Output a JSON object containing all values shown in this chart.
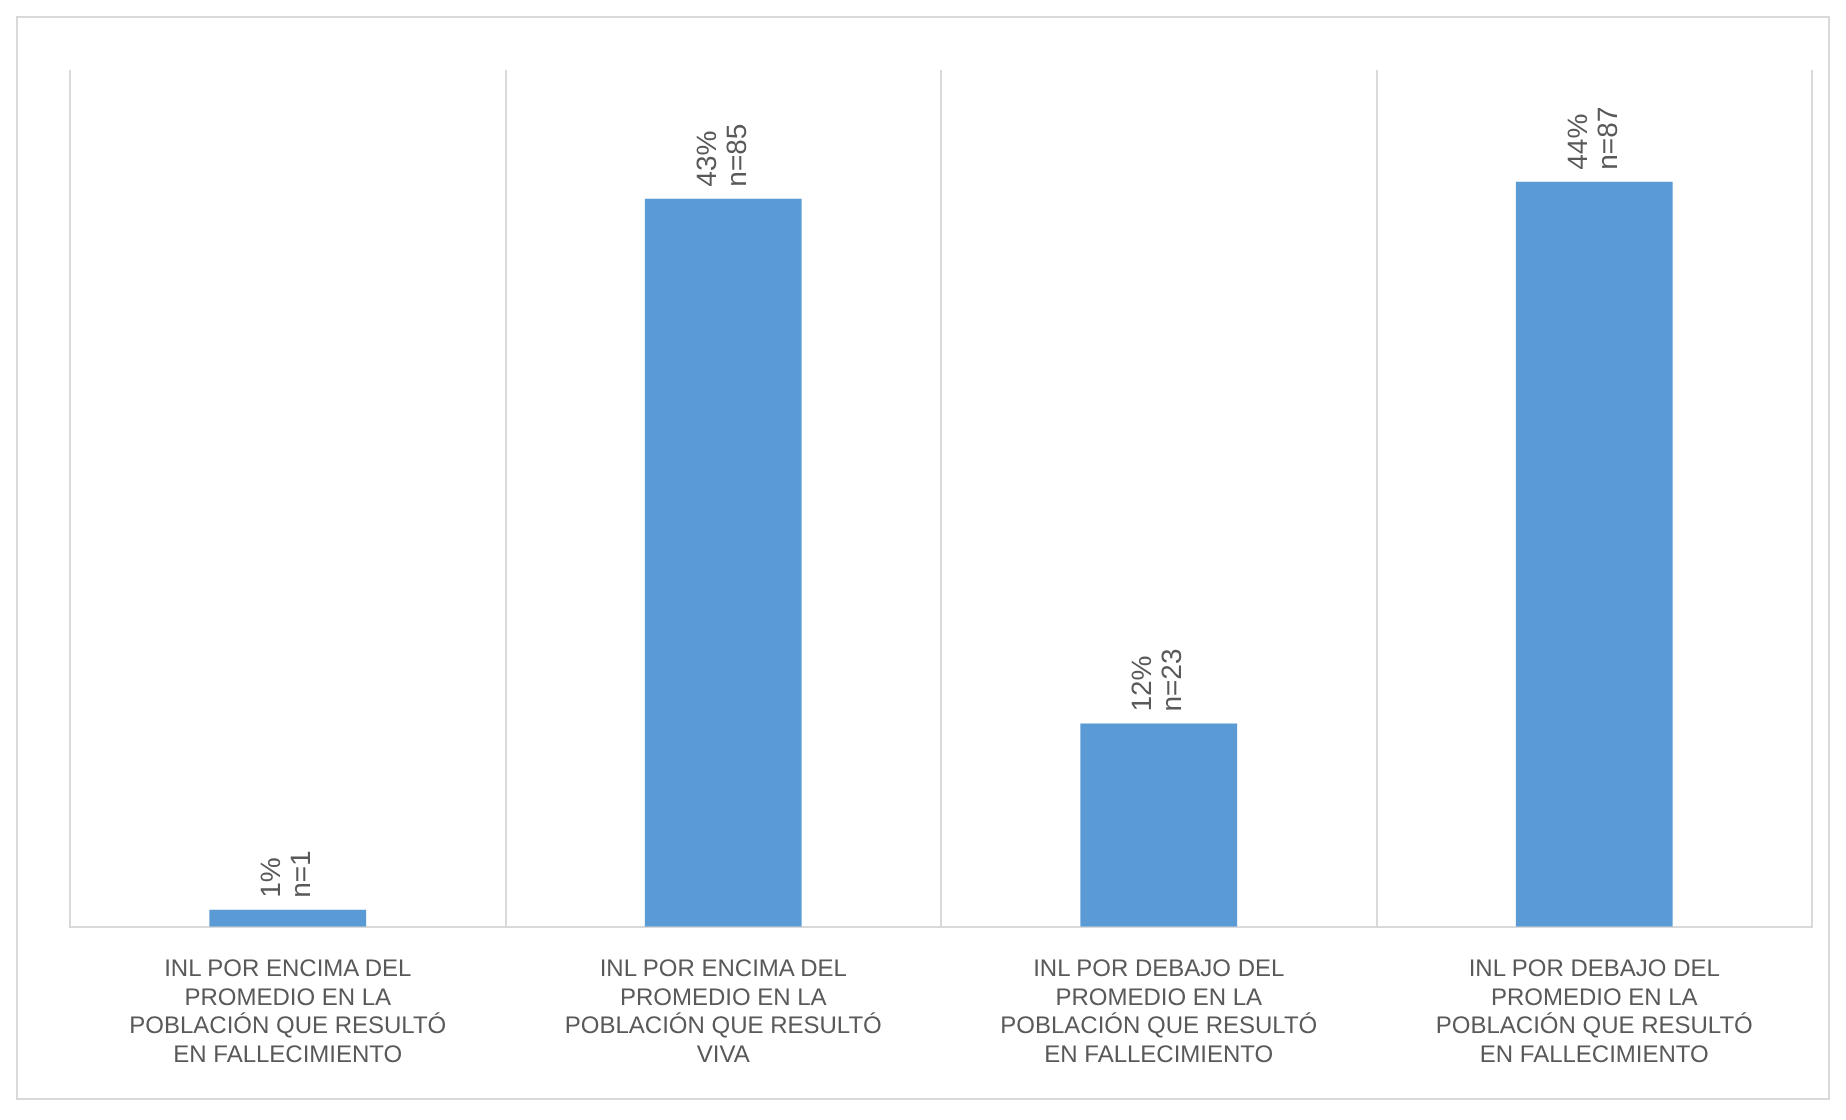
{
  "chart_data": {
    "type": "bar",
    "categories": [
      "INL POR ENCIMA DEL PROMEDIO EN LA POBLACIÓN QUE RESULTÓ EN FALLECIMIENTO",
      "INL POR ENCIMA DEL PROMEDIO EN LA POBLACIÓN QUE RESULTÓ VIVA",
      "INL POR DEBAJO DEL PROMEDIO EN LA POBLACIÓN QUE RESULTÓ EN FALLECIMIENTO",
      "INL POR DEBAJO DEL PROMEDIO EN LA POBLACIÓN QUE RESULTÓ EN FALLECIMIENTO"
    ],
    "values": [
      1,
      43,
      12,
      44
    ],
    "value_labels": [
      "1% n=1",
      "43% n=85",
      "12% n=23",
      "44% n=87"
    ],
    "color": "#5b9bd5",
    "grid": "x",
    "legend": false
  }
}
